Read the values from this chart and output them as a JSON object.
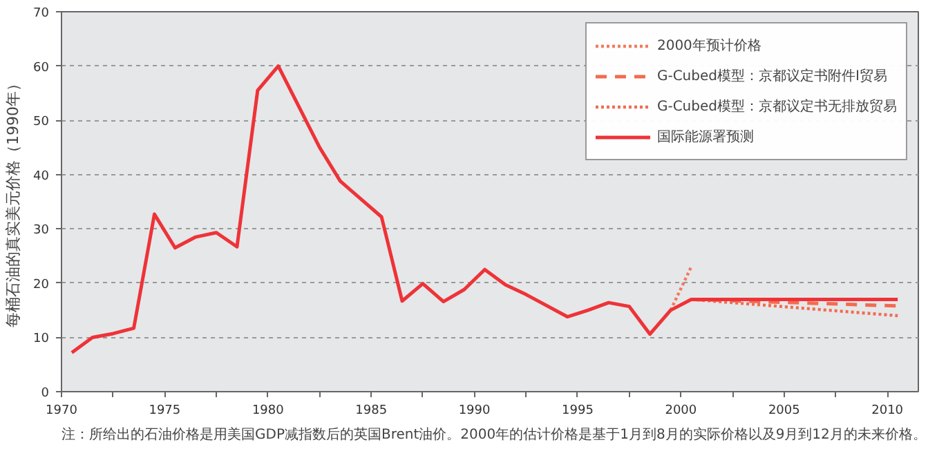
{
  "chart_data": {
    "type": "line",
    "ylabel": "每桶石油的真实美元价格（1990年）",
    "xlim": [
      1970,
      2011.5
    ],
    "ylim": [
      0,
      70
    ],
    "xticks": [
      1970,
      {
        "value": 1972.5,
        "label": null
      },
      1975,
      {
        "value": 1977.5,
        "label": null
      },
      1980,
      {
        "value": 1982.5,
        "label": null
      },
      1985,
      {
        "value": 1987.5,
        "label": null
      },
      1990,
      {
        "value": 1992.5,
        "label": null
      },
      1995,
      {
        "value": 1997.5,
        "label": null
      },
      2000,
      {
        "value": 2002.5,
        "label": null
      },
      2005,
      {
        "value": 2007.5,
        "label": null
      },
      2010
    ],
    "yticks": [
      0,
      10,
      20,
      30,
      40,
      50,
      60,
      70
    ],
    "grid": "y",
    "legend": "top right",
    "series": [
      {
        "name": "2000年预计价格",
        "color": "#f27a5e",
        "line_style": "dotted",
        "x": [
          1999.5,
          2000.5
        ],
        "values": [
          15,
          23
        ]
      },
      {
        "name": "G-Cubed模型：京都议定书附件I贸易",
        "color": "#f26b50",
        "line_style": "dashed",
        "x": [
          2000.5,
          2010.5
        ],
        "values": [
          17,
          15.8
        ]
      },
      {
        "name": "G-Cubed模型：京都议定书无排放贸易",
        "color": "#f26b50",
        "line_style": "dotted",
        "x": [
          2000.5,
          2010.5
        ],
        "values": [
          17,
          14
        ]
      },
      {
        "name": "国际能源署预测",
        "color": "#ee3338",
        "line_style": "solid",
        "x": [
          1970.5,
          1971.5,
          1972.5,
          1973.5,
          1974.5,
          1975.5,
          1976.5,
          1977.5,
          1978.5,
          1979.5,
          1980.5,
          1982.5,
          1983.5,
          1985.5,
          1986.5,
          1987.5,
          1988.5,
          1989.5,
          1990.5,
          1991.5,
          1992.5,
          1994.5,
          1995.5,
          1996.5,
          1997.5,
          1998.5,
          1999.5,
          2000.5,
          2010.5
        ],
        "values": [
          7.2,
          10,
          10.7,
          11.7,
          32.7,
          26.5,
          28.5,
          29.3,
          26.7,
          55.5,
          60,
          45,
          38.8,
          32.2,
          16.7,
          19.9,
          16.6,
          18.8,
          22.5,
          19.7,
          17.9,
          13.8,
          15,
          16.4,
          15.7,
          10.6,
          15,
          17,
          17
        ]
      }
    ],
    "annotations": [
      "注：所给出的石油价格是用美国GDP减指数后的英国Brent油价。2000年的估计价格是基于1月到8月的实际价格以及9月到12月的未来价格。"
    ]
  }
}
